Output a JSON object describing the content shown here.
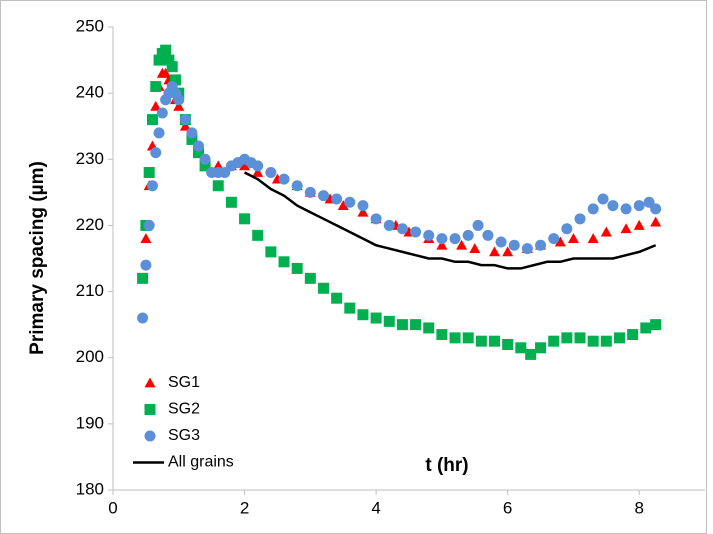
{
  "chart_data": {
    "type": "scatter",
    "xlabel": "t (hr)",
    "ylabel": "Primary spacing (µm)",
    "xlim": [
      0,
      9
    ],
    "xticks": [
      0,
      2,
      4,
      6,
      8
    ],
    "ylim": [
      180,
      250
    ],
    "yticks": [
      180,
      190,
      200,
      210,
      220,
      230,
      240,
      250
    ],
    "grid": false,
    "legend": "lower left",
    "series": [
      {
        "name": "SG1",
        "color": "#ff0000",
        "marker": "triangle",
        "x": [
          0.45,
          0.5,
          0.55,
          0.6,
          0.65,
          0.7,
          0.75,
          0.8,
          0.85,
          0.9,
          0.95,
          1.0,
          1.1,
          1.2,
          1.3,
          1.4,
          1.6,
          1.8,
          2.0,
          2.2,
          2.5,
          2.8,
          3.0,
          3.3,
          3.5,
          3.8,
          4.0,
          4.3,
          4.5,
          4.8,
          5.0,
          5.3,
          5.5,
          5.8,
          6.0,
          6.3,
          6.5,
          6.8,
          7.0,
          7.3,
          7.5,
          7.8,
          8.0,
          8.25
        ],
        "values": [
          212,
          218,
          226,
          232,
          238,
          241,
          243,
          243,
          242,
          240,
          239,
          238,
          235,
          233,
          232,
          230,
          229,
          229,
          229,
          228,
          227,
          226,
          225,
          224,
          223,
          222,
          221,
          220,
          219,
          218,
          217,
          217,
          216.5,
          216,
          216,
          216.5,
          217,
          217.5,
          218,
          218,
          219,
          219.5,
          220,
          220.5
        ]
      },
      {
        "name": "SG2",
        "color": "#00b050",
        "marker": "square",
        "x": [
          0.45,
          0.5,
          0.55,
          0.6,
          0.65,
          0.7,
          0.75,
          0.8,
          0.85,
          0.9,
          0.95,
          1.0,
          1.1,
          1.2,
          1.3,
          1.4,
          1.6,
          1.8,
          2.0,
          2.2,
          2.4,
          2.6,
          2.8,
          3.0,
          3.2,
          3.4,
          3.6,
          3.8,
          4.0,
          4.2,
          4.4,
          4.6,
          4.8,
          5.0,
          5.2,
          5.4,
          5.6,
          5.8,
          6.0,
          6.2,
          6.35,
          6.5,
          6.7,
          6.9,
          7.1,
          7.3,
          7.5,
          7.7,
          7.9,
          8.1,
          8.25
        ],
        "values": [
          212,
          220,
          228,
          236,
          241,
          245,
          246,
          246.5,
          245,
          244,
          242,
          240,
          236,
          233,
          231,
          229,
          226,
          223.5,
          221,
          218.5,
          216,
          214.5,
          213.5,
          212,
          210.5,
          209,
          207.5,
          206.5,
          206,
          205.5,
          205,
          205,
          204.5,
          203.5,
          203,
          203,
          202.5,
          202.5,
          202,
          201.5,
          200.5,
          201.5,
          202.5,
          203,
          203,
          202.5,
          202.5,
          203,
          203.5,
          204.5,
          205
        ]
      },
      {
        "name": "SG3",
        "color": "#5b8fd8",
        "marker": "circle",
        "x": [
          0.45,
          0.5,
          0.55,
          0.6,
          0.65,
          0.7,
          0.75,
          0.8,
          0.85,
          0.9,
          0.95,
          1.0,
          1.1,
          1.2,
          1.3,
          1.4,
          1.5,
          1.6,
          1.7,
          1.8,
          1.9,
          2.0,
          2.1,
          2.2,
          2.4,
          2.6,
          2.8,
          3.0,
          3.2,
          3.4,
          3.6,
          3.8,
          4.0,
          4.2,
          4.4,
          4.6,
          4.8,
          5.0,
          5.2,
          5.4,
          5.55,
          5.7,
          5.9,
          6.1,
          6.3,
          6.5,
          6.7,
          6.9,
          7.1,
          7.3,
          7.45,
          7.6,
          7.8,
          8.0,
          8.15,
          8.25
        ],
        "values": [
          206,
          214,
          220,
          226,
          231,
          234,
          237,
          239,
          240,
          241,
          240,
          239,
          236,
          234,
          232,
          230,
          228,
          228,
          228,
          229,
          229.5,
          230,
          229.5,
          229,
          228,
          227,
          226,
          225,
          224.5,
          224,
          223.5,
          223,
          221,
          220,
          219.5,
          219,
          218.5,
          218,
          218,
          218.5,
          220,
          218.5,
          217.5,
          217,
          216.5,
          217,
          218,
          219.5,
          221,
          222.5,
          224,
          223,
          222.5,
          223,
          223.5,
          222.5
        ]
      },
      {
        "name": "All grains",
        "color": "#000000",
        "marker": "line",
        "x": [
          2.0,
          2.2,
          2.4,
          2.6,
          2.8,
          3.0,
          3.2,
          3.4,
          3.6,
          3.8,
          4.0,
          4.2,
          4.4,
          4.6,
          4.8,
          5.0,
          5.2,
          5.4,
          5.6,
          5.8,
          6.0,
          6.2,
          6.4,
          6.6,
          6.8,
          7.0,
          7.2,
          7.4,
          7.6,
          7.8,
          8.0,
          8.25
        ],
        "values": [
          228,
          227,
          225.5,
          224.5,
          223,
          222,
          221,
          220,
          219,
          218,
          217,
          216.5,
          216,
          215.5,
          215,
          215,
          214.5,
          214.5,
          214,
          214,
          213.5,
          213.5,
          214,
          214.5,
          214.5,
          215,
          215,
          215,
          215,
          215.5,
          216,
          217
        ]
      }
    ]
  }
}
